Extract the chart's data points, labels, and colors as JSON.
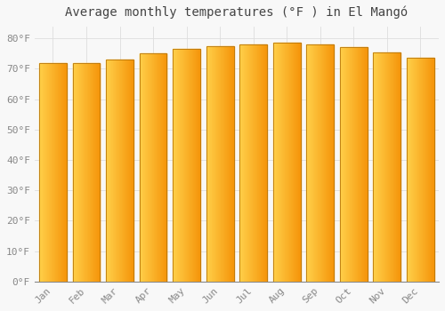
{
  "title": "Average monthly temperatures (°F ) in El Mangó",
  "months": [
    "Jan",
    "Feb",
    "Mar",
    "Apr",
    "May",
    "Jun",
    "Jul",
    "Aug",
    "Sep",
    "Oct",
    "Nov",
    "Dec"
  ],
  "values": [
    72,
    72,
    73,
    75,
    76.5,
    77.5,
    78,
    78.5,
    78,
    77,
    75.5,
    73.5
  ],
  "bar_color_left": "#FFD04A",
  "bar_color_right": "#F5950A",
  "bar_edge_color": "#B8760A",
  "background_color": "#F8F8F8",
  "yticks": [
    0,
    10,
    20,
    30,
    40,
    50,
    60,
    70,
    80
  ],
  "ylim": [
    0,
    84
  ],
  "grid_color": "#DDDDDD",
  "title_fontsize": 10,
  "tick_fontsize": 8,
  "bar_width": 0.82
}
